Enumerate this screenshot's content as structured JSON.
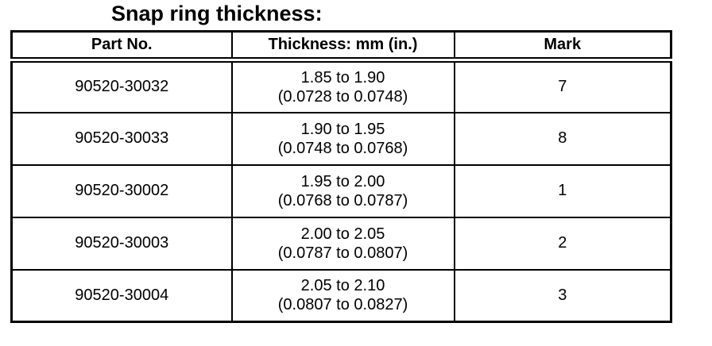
{
  "title": "Snap ring thickness:",
  "colors": {
    "text": "#000000",
    "background": "#ffffff",
    "border": "#000000"
  },
  "table": {
    "headers": {
      "part_no": "Part No.",
      "thickness": "Thickness: mm (in.)",
      "mark": "Mark"
    },
    "rows": [
      {
        "part_no": "90520-30032",
        "thickness_mm": "1.85 to 1.90",
        "thickness_in": "(0.0728 to 0.0748)",
        "mark": "7"
      },
      {
        "part_no": "90520-30033",
        "thickness_mm": "1.90 to 1.95",
        "thickness_in": "(0.0748 to 0.0768)",
        "mark": "8"
      },
      {
        "part_no": "90520-30002",
        "thickness_mm": "1.95 to 2.00",
        "thickness_in": "(0.0768 to 0.0787)",
        "mark": "1"
      },
      {
        "part_no": "90520-30003",
        "thickness_mm": "2.00 to 2.05",
        "thickness_in": "(0.0787 to 0.0807)",
        "mark": "2"
      },
      {
        "part_no": "90520-30004",
        "thickness_mm": "2.05 to 2.10",
        "thickness_in": "(0.0807 to 0.0827)",
        "mark": "3"
      }
    ]
  }
}
